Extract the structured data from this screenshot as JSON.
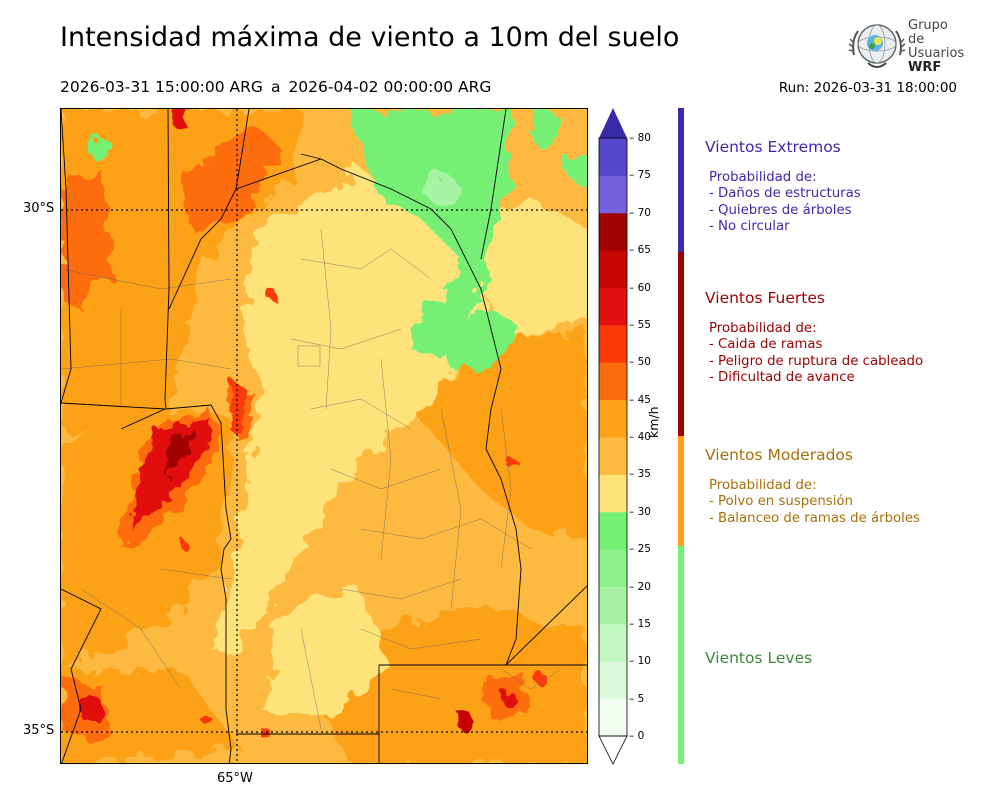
{
  "title": "Intensidad máxima de viento a 10m del suelo",
  "period": {
    "start": "2026-03-31 15:00:00 ARG",
    "separator": "a",
    "end": "2026-04-02 00:00:00 ARG"
  },
  "run": "Run: 2026-03-31 18:00:00",
  "logo": {
    "line1": "Grupo de",
    "line2": "Usuarios",
    "line3": "WRF"
  },
  "map": {
    "lat_labels": [
      "30°S",
      "35°S"
    ],
    "lon_labels": [
      "65°W"
    ]
  },
  "colorbar": {
    "unit": "km/h",
    "ticks": [
      "0",
      "5",
      "10",
      "15",
      "20",
      "25",
      "30",
      "35",
      "40",
      "45",
      "50",
      "55",
      "60",
      "65",
      "70",
      "75",
      "80"
    ],
    "colors": [
      "#f2fcf0",
      "#dafadb",
      "#c2f7bf",
      "#a8f3a3",
      "#8df28c",
      "#74f074",
      "#fee37a",
      "#feba40",
      "#fda118",
      "#fd6c0c",
      "#fc3a08",
      "#e21010",
      "#c70606",
      "#a10303",
      "#7461dd",
      "#5747cc",
      "#4533b6"
    ],
    "extend_top_color": "#3b2aa8"
  },
  "categories": [
    {
      "title": "Vientos Extremos",
      "color": "#3b2aae",
      "bar": "#3b2aae",
      "desc": [
        "Probabilidad de:",
        "- Daños de estructuras",
        "- Quiebres de árboles",
        "- No circular"
      ]
    },
    {
      "title": "Vientos Fuertes",
      "color": "#9b0202",
      "bar": "#9b0202",
      "desc": [
        "Probabilidad de:",
        "- Caida de ramas",
        "- Peligro de ruptura de cableado",
        "- Dificultad de avance"
      ]
    },
    {
      "title": "Vientos Moderados",
      "color": "#a8700a",
      "bar": "#fda118",
      "desc": [
        "Probabilidad de:",
        "- Polvo en suspensión",
        "- Balanceo de ramas de árboles"
      ]
    },
    {
      "title": "Vientos Leves",
      "color": "#3a8a3a",
      "bar": "#74f074",
      "desc": []
    }
  ]
}
